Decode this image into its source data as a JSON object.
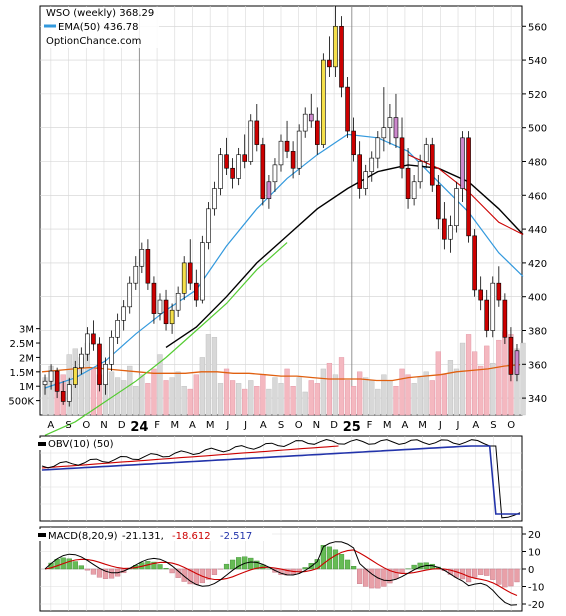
{
  "header": {
    "title": "WSO (weekly) 368.29",
    "ema_label": "EMA(50) 436.78",
    "watermark": "OptionChance.com"
  },
  "colors": {
    "up_candle": "#ffffff",
    "down_candle": "#cc0000",
    "ema_short": "#3399dd",
    "ema_long": "#000000",
    "ema_early": "#55cc33",
    "vol_avg": "#e06010",
    "vol_up": "#d8d8d8",
    "vol_down": "#f4b8c0",
    "obv": "#000000",
    "obv_avg": "#cc0000",
    "obv_long": "#2233aa",
    "macd": "#000000",
    "signal": "#cc0000",
    "hist_up": "#66bb55",
    "hist_down": "#e8a0a8"
  },
  "chart_data": [
    {
      "type": "candlestick",
      "series": [
        {
          "name": "WSO (weekly) 368.29"
        },
        {
          "name": "EMA(50) 436.78"
        }
      ],
      "x_labels": [
        "A",
        "S",
        "O",
        "N",
        "D",
        "24",
        "F",
        "M",
        "A",
        "M",
        "J",
        "J",
        "A",
        "S",
        "O",
        "N",
        "D",
        "25",
        "F",
        "M",
        "A",
        "M",
        "J",
        "J",
        "A",
        "S",
        "O"
      ],
      "y_ticks": [
        340,
        360,
        380,
        400,
        420,
        440,
        460,
        480,
        500,
        520,
        540,
        560
      ],
      "ylim": [
        330,
        572
      ],
      "ohlc_weekly": [
        [
          348,
          354,
          342,
          350
        ],
        [
          350,
          360,
          345,
          356
        ],
        [
          356,
          358,
          340,
          344
        ],
        [
          344,
          350,
          336,
          338
        ],
        [
          338,
          352,
          335,
          348
        ],
        [
          348,
          362,
          346,
          358
        ],
        [
          358,
          370,
          354,
          366
        ],
        [
          366,
          382,
          362,
          378
        ],
        [
          378,
          386,
          368,
          372
        ],
        [
          372,
          376,
          344,
          348
        ],
        [
          348,
          364,
          342,
          360
        ],
        [
          360,
          380,
          356,
          376
        ],
        [
          376,
          390,
          372,
          386
        ],
        [
          386,
          398,
          380,
          394
        ],
        [
          394,
          412,
          390,
          408
        ],
        [
          408,
          424,
          404,
          418
        ],
        [
          418,
          432,
          414,
          428
        ],
        [
          428,
          434,
          404,
          408
        ],
        [
          408,
          412,
          384,
          390
        ],
        [
          390,
          402,
          386,
          398
        ],
        [
          398,
          404,
          380,
          384
        ],
        [
          384,
          396,
          378,
          392
        ],
        [
          392,
          406,
          388,
          402
        ],
        [
          402,
          424,
          398,
          420
        ],
        [
          420,
          434,
          404,
          408
        ],
        [
          408,
          416,
          394,
          398
        ],
        [
          398,
          436,
          396,
          432
        ],
        [
          432,
          456,
          428,
          452
        ],
        [
          452,
          468,
          448,
          464
        ],
        [
          464,
          488,
          460,
          484
        ],
        [
          484,
          494,
          472,
          476
        ],
        [
          476,
          482,
          464,
          470
        ],
        [
          470,
          488,
          466,
          484
        ],
        [
          484,
          496,
          476,
          480
        ],
        [
          480,
          508,
          478,
          504
        ],
        [
          504,
          514,
          486,
          490
        ],
        [
          490,
          494,
          454,
          458
        ],
        [
          458,
          472,
          452,
          468
        ],
        [
          468,
          482,
          462,
          478
        ],
        [
          478,
          496,
          474,
          492
        ],
        [
          492,
          504,
          482,
          486
        ],
        [
          486,
          492,
          470,
          476
        ],
        [
          476,
          502,
          472,
          498
        ],
        [
          498,
          512,
          494,
          508
        ],
        [
          508,
          520,
          500,
          504
        ],
        [
          504,
          512,
          484,
          490
        ],
        [
          490,
          544,
          488,
          540
        ],
        [
          540,
          554,
          530,
          536
        ],
        [
          536,
          572,
          530,
          560
        ],
        [
          560,
          566,
          518,
          524
        ],
        [
          524,
          530,
          494,
          498
        ],
        [
          498,
          506,
          480,
          484
        ],
        [
          484,
          492,
          458,
          464
        ],
        [
          464,
          478,
          460,
          474
        ],
        [
          474,
          486,
          468,
          482
        ],
        [
          482,
          498,
          476,
          494
        ],
        [
          494,
          524,
          486,
          500
        ],
        [
          500,
          514,
          490,
          506
        ],
        [
          506,
          520,
          488,
          494
        ],
        [
          494,
          506,
          470,
          476
        ],
        [
          476,
          488,
          452,
          458
        ],
        [
          458,
          472,
          454,
          468
        ],
        [
          468,
          484,
          464,
          480
        ],
        [
          480,
          494,
          476,
          490
        ],
        [
          490,
          494,
          462,
          466
        ],
        [
          466,
          472,
          440,
          446
        ],
        [
          446,
          456,
          428,
          434
        ],
        [
          434,
          448,
          426,
          442
        ],
        [
          442,
          468,
          438,
          464
        ],
        [
          464,
          498,
          456,
          494
        ],
        [
          494,
          498,
          432,
          436
        ],
        [
          436,
          440,
          400,
          404
        ],
        [
          404,
          412,
          392,
          398
        ],
        [
          398,
          404,
          376,
          380
        ],
        [
          380,
          412,
          376,
          408
        ],
        [
          408,
          418,
          394,
          398
        ],
        [
          398,
          402,
          372,
          376
        ],
        [
          376,
          382,
          350,
          354
        ],
        [
          354,
          372,
          350,
          368
        ]
      ],
      "ema_short": [
        [
          0,
          346
        ],
        [
          5,
          352
        ],
        [
          10,
          362
        ],
        [
          15,
          378
        ],
        [
          20,
          392
        ],
        [
          25,
          404
        ],
        [
          30,
          430
        ],
        [
          35,
          452
        ],
        [
          40,
          470
        ],
        [
          45,
          484
        ],
        [
          50,
          496
        ],
        [
          55,
          494
        ],
        [
          60,
          486
        ],
        [
          65,
          468
        ],
        [
          70,
          450
        ],
        [
          75,
          426
        ],
        [
          79,
          412
        ]
      ],
      "ema_long": [
        [
          20,
          370
        ],
        [
          25,
          382
        ],
        [
          30,
          400
        ],
        [
          35,
          420
        ],
        [
          40,
          436
        ],
        [
          45,
          452
        ],
        [
          50,
          464
        ],
        [
          55,
          474
        ],
        [
          60,
          478
        ],
        [
          65,
          476
        ],
        [
          70,
          468
        ],
        [
          75,
          452
        ],
        [
          79,
          436.78
        ]
      ]
    },
    {
      "type": "bar",
      "series": [
        {
          "name": "Volume"
        }
      ],
      "y_ticks": [
        "3M",
        "2.5M",
        "2M",
        "1.5M",
        "1M",
        "500K"
      ],
      "ylim": [
        0,
        3500000
      ],
      "values": [
        1.3,
        1.7,
        1.1,
        1.4,
        2.1,
        2.3,
        2.0,
        2.5,
        1.6,
        1.4,
        1.1,
        1.5,
        1.3,
        1.2,
        1.7,
        1.0,
        1.4,
        1.1,
        1.6,
        2.1,
        1.2,
        1.3,
        1.5,
        1.0,
        0.9,
        1.4,
        2.0,
        2.8,
        2.7,
        1.1,
        1.6,
        1.2,
        1.1,
        0.9,
        1.2,
        1.0,
        1.4,
        0.9,
        1.3,
        1.1,
        1.6,
        1.0,
        1.3,
        0.8,
        1.2,
        1.1,
        1.6,
        1.8,
        1.4,
        2.0,
        1.2,
        1.0,
        1.5,
        1.3,
        1.2,
        0.9,
        1.4,
        1.2,
        1.0,
        1.6,
        1.4,
        1.1,
        1.3,
        1.5,
        1.2,
        2.2,
        1.4,
        1.9,
        1.6,
        2.5,
        2.8,
        2.2,
        1.7,
        2.4,
        1.8,
        2.6,
        2.9,
        2.8,
        2.3,
        2.5
      ],
      "avg": [
        1.5,
        1.55,
        1.6,
        1.65,
        1.6,
        1.55,
        1.5,
        1.45,
        1.45,
        1.45,
        1.5,
        1.5,
        1.45,
        1.45,
        1.4,
        1.35,
        1.35,
        1.3,
        1.25,
        1.25,
        1.25,
        1.2,
        1.2,
        1.3,
        1.35,
        1.4,
        1.5,
        1.55,
        1.6,
        1.7,
        1.75
      ]
    },
    {
      "type": "line",
      "series": [
        {
          "name": "OBV(10)"
        },
        {
          "name": "(50)"
        }
      ],
      "label": "OBV(10) (50)"
    },
    {
      "type": "line",
      "series": [
        {
          "name": "MACD(8,20,9)"
        }
      ],
      "label_prefix": "MACD(8,20,9)",
      "values_text": [
        "-21.131,",
        "-18.612",
        "-2.517"
      ],
      "y_ticks": [
        20,
        10,
        0,
        -10,
        -20
      ],
      "ylim": [
        -24,
        24
      ]
    }
  ]
}
